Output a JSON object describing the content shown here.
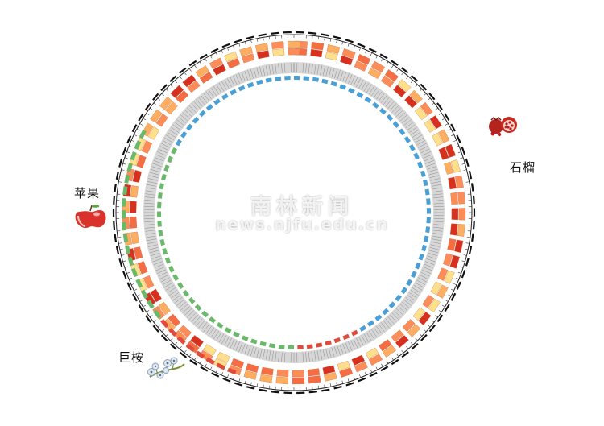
{
  "labels": {
    "apple": "苹果",
    "pomegranate": "石榴",
    "eucalyptus": "巨桉"
  },
  "watermark": {
    "title": "南林新闻",
    "url": "news.njfu.edu.cn"
  },
  "icons": {
    "apple": "apple-fruit-icon",
    "pomegranate": "pomegranate-fruit-icon",
    "eucalyptus": "eucalyptus-flower-icon"
  },
  "colors": {
    "link_primary": "#f26b4a",
    "link_secondary": "#c9c86b",
    "link_green": "#7fc47a",
    "link_dark": "#222222",
    "link_grey": "#b8b8b8",
    "marker_blue": "#4a9fd6",
    "marker_green": "#6ab86a",
    "marker_red": "#e04a3a",
    "heat_high": "#d7301f",
    "heat_mid": "#fc8d59",
    "heat_low": "#fee08b"
  }
}
